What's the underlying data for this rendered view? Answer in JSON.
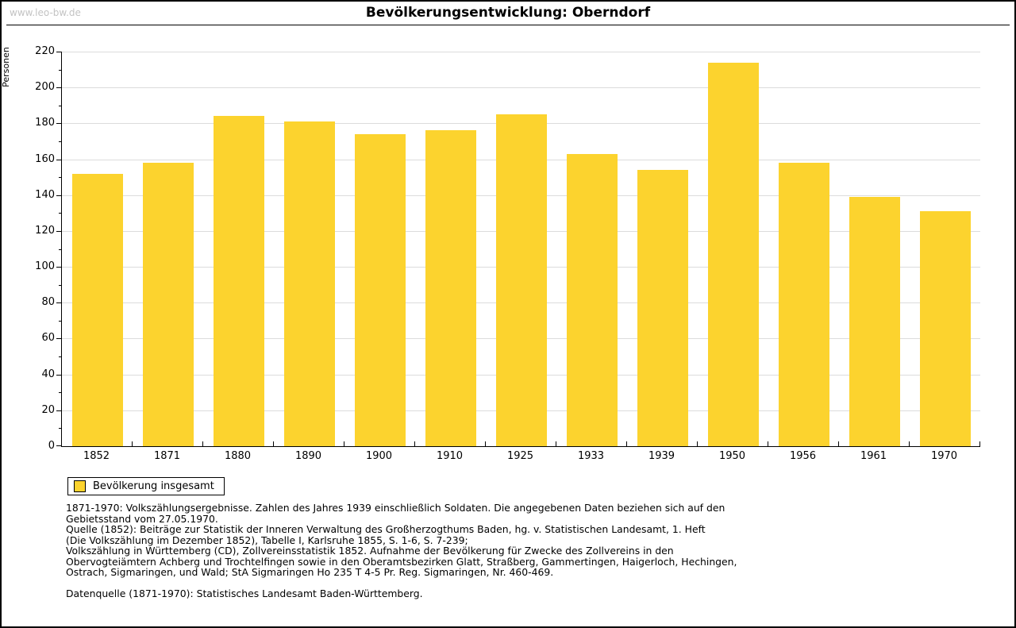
{
  "watermark": "www.leo-bw.de",
  "title": "Bevölkerungsentwicklung: Oberndorf",
  "chart_data": {
    "type": "bar",
    "title": "Bevölkerungsentwicklung: Oberndorf",
    "xlabel": "",
    "ylabel": "Personen",
    "categories": [
      "1852",
      "1871",
      "1880",
      "1890",
      "1900",
      "1910",
      "1925",
      "1933",
      "1939",
      "1950",
      "1956",
      "1961",
      "1970"
    ],
    "values": [
      152,
      158,
      184,
      181,
      174,
      176,
      185,
      163,
      154,
      214,
      158,
      139,
      131
    ],
    "ylim": [
      0,
      220
    ],
    "ytick_interval": 20,
    "yminor_interval": 10,
    "grid": true,
    "legend_label": "Bevölkerung insgesamt",
    "legend_position": "bottom-left",
    "bar_color": "#fcd32e",
    "gridline_color": "#dcdcdc"
  },
  "legend": {
    "label": "Bevölkerung insgesamt",
    "swatch_color": "#fcd32e"
  },
  "footnotes": {
    "lines": [
      "1871-1970: Volkszählungsergebnisse. Zahlen des Jahres 1939 einschließlich Soldaten. Die angegebenen Daten beziehen sich auf den",
      "Gebietsstand vom 27.05.1970.",
      "Quelle (1852): Beiträge zur Statistik der Inneren Verwaltung des Großherzogthums Baden, hg. v. Statistischen Landesamt, 1. Heft",
      "(Die Volkszählung im Dezember 1852), Tabelle I, Karlsruhe 1855, S. 1-6, S. 7-239;",
      "Volkszählung in Württemberg (CD), Zollvereinsstatistik 1852. Aufnahme der Bevölkerung für Zwecke des Zollvereins in den",
      "Obervogteiämtern Achberg und Trochtelfingen sowie in den Oberamtsbezirken Glatt, Straßberg, Gammertingen, Haigerloch, Hechingen,",
      "Ostrach, Sigmaringen, und Wald; StA Sigmaringen Ho 235 T 4-5 Pr. Reg. Sigmaringen, Nr. 460-469."
    ],
    "datasource": "Datenquelle (1871-1970): Statistisches Landesamt Baden-Württemberg."
  }
}
